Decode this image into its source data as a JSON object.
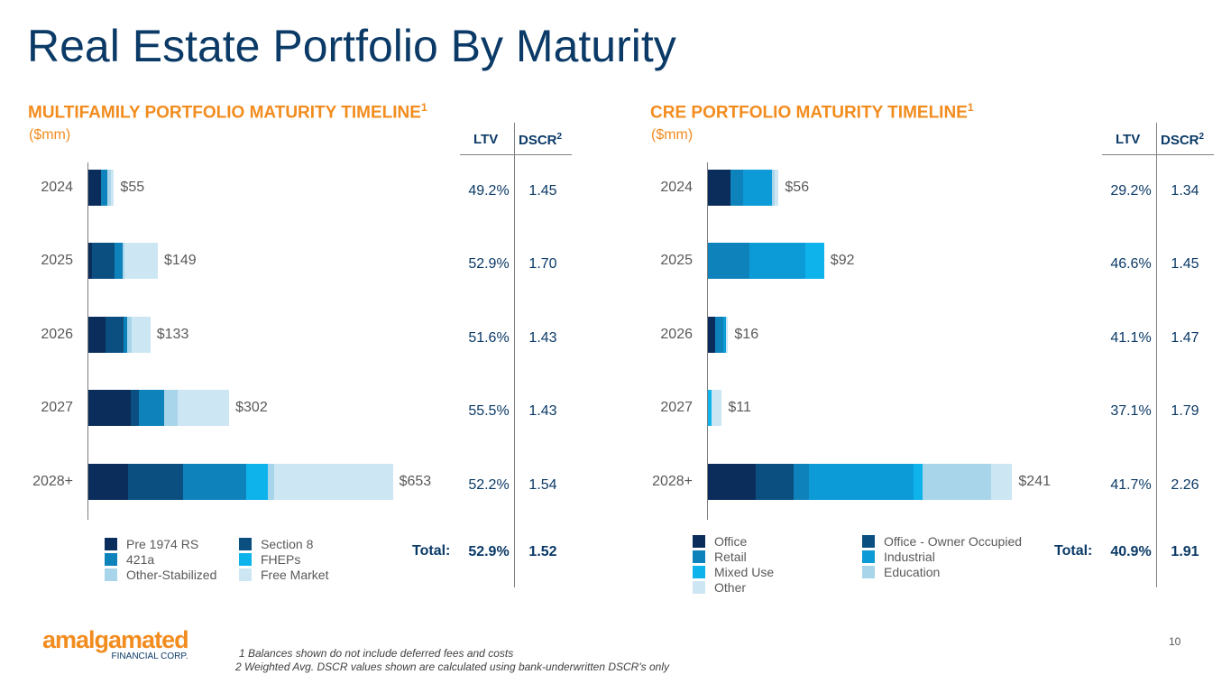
{
  "title": "Real Estate Portfolio By Maturity",
  "multifamily": {
    "section_title": "MULTIFAMILY PORTFOLIO MATURITY TIMELINE",
    "section_sup": "1",
    "units": "($mm)",
    "ltv_header": "LTV",
    "dscr_header": "DSCR",
    "dscr_sup": "2",
    "total_label": "Total:",
    "total_ltv": "52.9%",
    "total_dscr": "1.52",
    "rows": [
      {
        "ltv": "49.2%",
        "dscr": "1.45"
      },
      {
        "ltv": "52.9%",
        "dscr": "1.70"
      },
      {
        "ltv": "51.6%",
        "dscr": "1.43"
      },
      {
        "ltv": "55.5%",
        "dscr": "1.43"
      },
      {
        "ltv": "52.2%",
        "dscr": "1.54"
      }
    ]
  },
  "cre": {
    "section_title": "CRE PORTFOLIO MATURITY TIMELINE",
    "section_sup": "1",
    "units": "($mm)",
    "ltv_header": "LTV",
    "dscr_header": "DSCR",
    "dscr_sup": "2",
    "total_label": "Total:",
    "total_ltv": "40.9%",
    "total_dscr": "1.91",
    "rows": [
      {
        "ltv": "29.2%",
        "dscr": "1.34"
      },
      {
        "ltv": "46.6%",
        "dscr": "1.45"
      },
      {
        "ltv": "41.1%",
        "dscr": "1.47"
      },
      {
        "ltv": "37.1%",
        "dscr": "1.79"
      },
      {
        "ltv": "41.7%",
        "dscr": "2.26"
      }
    ]
  },
  "chart_data": [
    {
      "type": "bar",
      "orientation": "horizontal",
      "stacked": true,
      "categories": [
        "2024",
        "2025",
        "2026",
        "2027",
        "2028+"
      ],
      "totals": [
        "$55",
        "$149",
        "$133",
        "$302",
        "$653"
      ],
      "series": [
        {
          "name": "Pre 1974 RS",
          "color": "#0b2d5b",
          "values": [
            27,
            7,
            37,
            91,
            86
          ]
        },
        {
          "name": "Section 8",
          "color": "#0a4f80",
          "values": [
            0,
            49,
            38,
            17,
            118
          ]
        },
        {
          "name": "421a",
          "color": "#0e82bb",
          "values": [
            14,
            18,
            8,
            55,
            135
          ]
        },
        {
          "name": "FHEPs",
          "color": "#0fb3ec",
          "values": [
            0,
            0,
            0,
            0,
            45
          ]
        },
        {
          "name": "Other-Stabilized",
          "color": "#a9d5ea",
          "values": [
            7,
            4,
            10,
            28,
            15
          ]
        },
        {
          "name": "Free Market",
          "color": "#cde6f3",
          "values": [
            7,
            71,
            40,
            111,
            254
          ]
        }
      ],
      "legend_position": "bottom"
    },
    {
      "type": "bar",
      "orientation": "horizontal",
      "stacked": true,
      "categories": [
        "2024",
        "2025",
        "2026",
        "2027",
        "2028+"
      ],
      "totals": [
        "$56",
        "$92",
        "$16",
        "$11",
        "$241"
      ],
      "series": [
        {
          "name": "Office",
          "color": "#0b2d5b",
          "values": [
            18,
            0,
            6,
            0,
            38
          ]
        },
        {
          "name": "Office - Owner Occupied",
          "color": "#0a4f80",
          "values": [
            0,
            0,
            0,
            0,
            30
          ]
        },
        {
          "name": "Retail",
          "color": "#0e82bb",
          "values": [
            10,
            33,
            6,
            0,
            12
          ]
        },
        {
          "name": "Industrial",
          "color": "#0c9bd6",
          "values": [
            23,
            44,
            2,
            0,
            83
          ]
        },
        {
          "name": "Mixed Use",
          "color": "#0fb3ec",
          "values": [
            0,
            15,
            0,
            3,
            7
          ]
        },
        {
          "name": "Education",
          "color": "#a9d5ea",
          "values": [
            2,
            0,
            0,
            0,
            54
          ]
        },
        {
          "name": "Other",
          "color": "#cde6f3",
          "values": [
            3,
            0,
            2,
            8,
            17
          ]
        }
      ],
      "legend_position": "bottom"
    }
  ],
  "footnotes": [
    "1 Balances shown do not include deferred fees and costs",
    "2 Weighted Avg. DSCR values shown are calculated using bank-underwritten DSCR's only"
  ],
  "logo": {
    "main": "amalgamated",
    "sub": "FINANCIAL CORP."
  },
  "page_number": "10"
}
